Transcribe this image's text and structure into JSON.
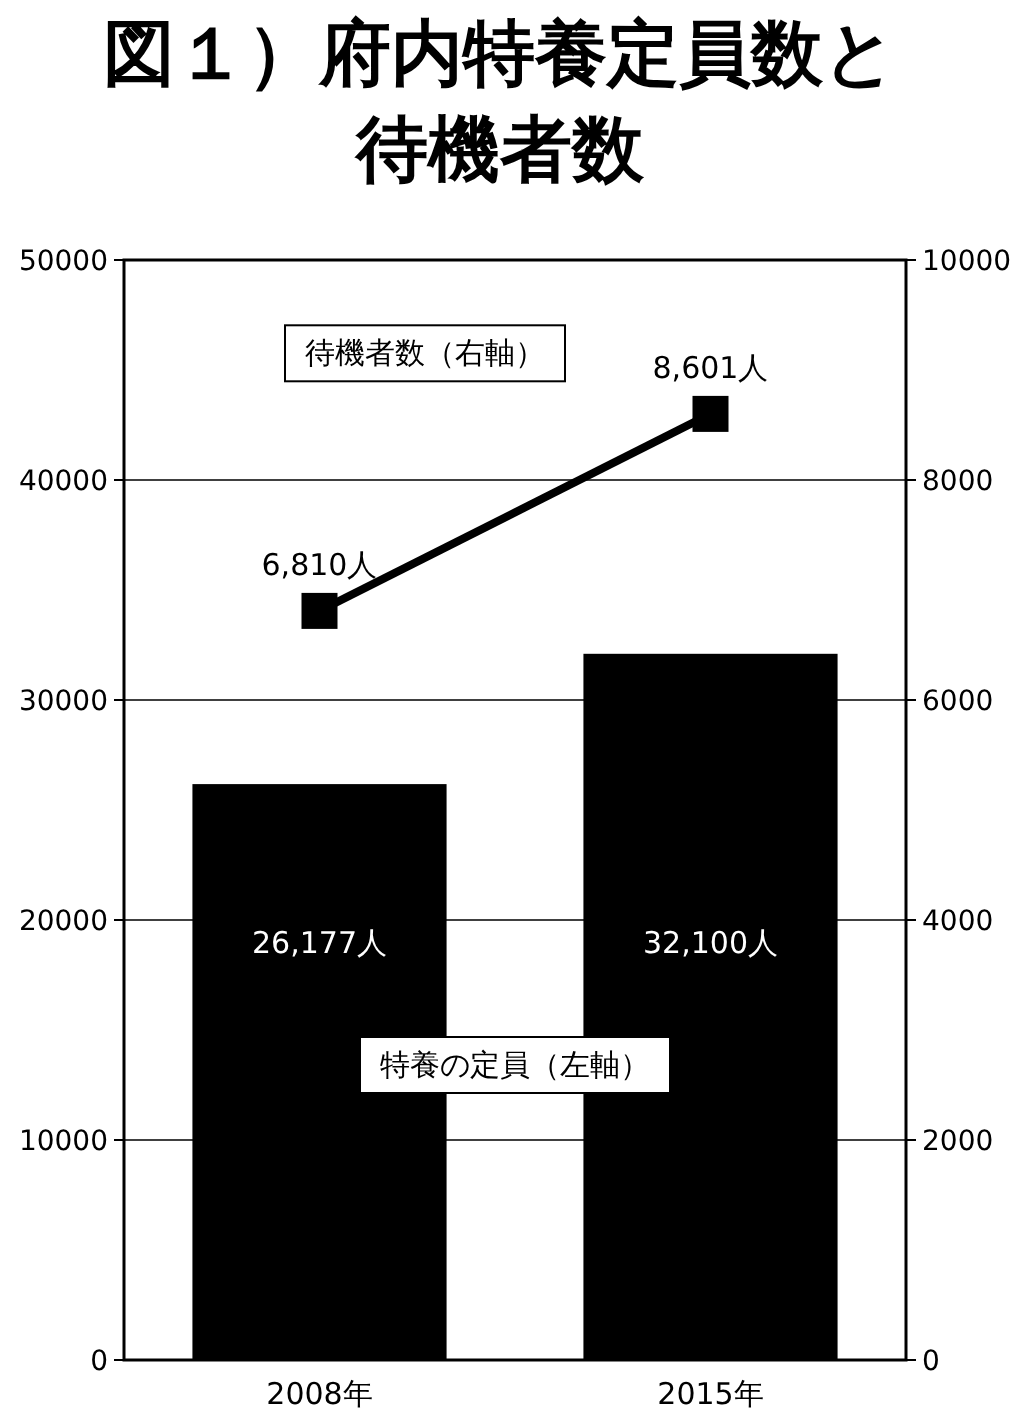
{
  "chart_data": {
    "type": "bar",
    "title": "図１）府内特養定員数と待機者数",
    "categories": [
      "2008年",
      "2015年"
    ],
    "series": [
      {
        "name": "特養の定員（左軸）",
        "color": "#000000",
        "values": [
          26177,
          32100
        ],
        "value_labels": [
          "26,177人",
          "32,100人"
        ]
      },
      {
        "name": "待機者数（右軸）",
        "type": "line",
        "axis": "y2",
        "marker": "square",
        "color": "#000000",
        "values": [
          6810,
          8601
        ],
        "value_labels": [
          "6,810人",
          "8,601人"
        ]
      }
    ],
    "ylim": [
      0,
      50000
    ],
    "yticks": [
      0,
      10000,
      20000,
      30000,
      40000,
      50000
    ],
    "y2lim": [
      0,
      10000
    ],
    "y2ticks": [
      0,
      2000,
      4000,
      6000,
      8000,
      10000
    ],
    "grid": "y"
  }
}
